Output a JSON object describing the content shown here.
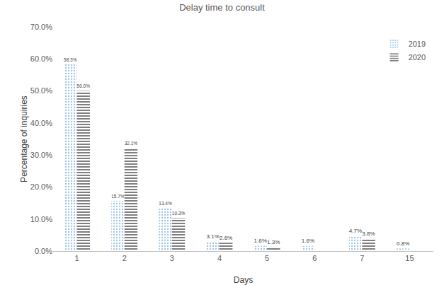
{
  "chart_data": {
    "type": "bar",
    "title": "Delay time to consult",
    "x_label": "Days",
    "y_label": "Percentage of inquiries",
    "categories": [
      "1",
      "2",
      "3",
      "4",
      "5",
      "6",
      "7",
      "15"
    ],
    "series": [
      {
        "name": "2019",
        "color": "#9dc3e6",
        "marker": "dots",
        "values": [
          58.3,
          15.7,
          13.4,
          3.1,
          1.6,
          1.6,
          4.7,
          0.8
        ],
        "value_labels": [
          "58.3%",
          "15.7%",
          "13.4%",
          "3.1%",
          "1.6%",
          "1.6%",
          "4.7%",
          "0.8%"
        ]
      },
      {
        "name": "2020",
        "color": "#7f7f7f",
        "marker": "hstripes",
        "values": [
          50.0,
          32.1,
          10.3,
          2.6,
          1.3,
          null,
          3.8,
          null
        ],
        "value_labels": [
          "50.0%",
          "32.1%",
          "10.3%",
          "2.6%",
          "1.3%",
          null,
          "3.8%",
          null
        ]
      }
    ],
    "ylim": [
      0,
      70
    ],
    "yticks": [
      {
        "value": 0,
        "label": "0.0%"
      },
      {
        "value": 10,
        "label": "10.0%"
      },
      {
        "value": 20,
        "label": "20.0%"
      },
      {
        "value": 30,
        "label": "30.0%"
      },
      {
        "value": 40,
        "label": "40.0%"
      },
      {
        "value": 50,
        "label": "50.0%"
      },
      {
        "value": 60,
        "label": "60.0%"
      },
      {
        "value": 70,
        "label": "70.0%"
      }
    ],
    "grid": false,
    "legend": "upper right",
    "data_labels": true
  }
}
